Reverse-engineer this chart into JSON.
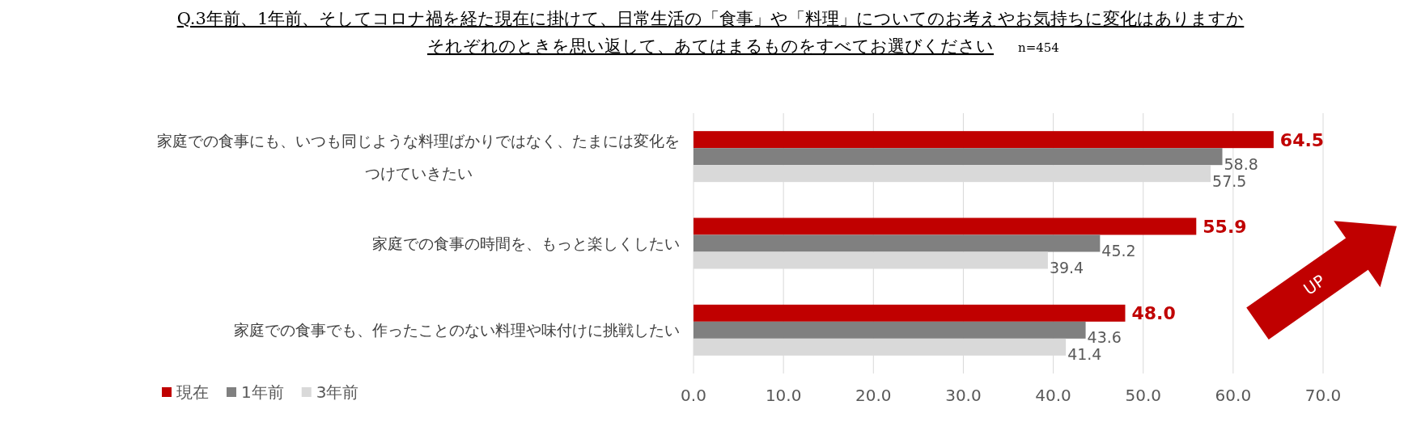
{
  "chart_data": {
    "type": "bar",
    "orientation": "horizontal",
    "title": "Q.3年前、1年前、そしてコロナ禍を経た現在に掛けて、日常生活の「食事」や「料理」についてのお考えやお気持ちに変化はありますか",
    "subtitle": "それぞれのときを思い返して、あてはまるものをすべてお選びください",
    "annotations": [
      "n=454",
      "UP"
    ],
    "categories": [
      "家庭での食事にも、いつも同じような料理ばかりではなく、たまには変化をつけていきたい",
      "家庭での食事の時間を、もっと楽しくしたい",
      "家庭での食事でも、作ったことのない料理や味付けに挑戦したい"
    ],
    "series": [
      {
        "name": "現在",
        "color": "#c00000",
        "values": [
          64.5,
          55.9,
          48.0
        ],
        "value_labels": [
          "64.5",
          "55.9",
          "48.0"
        ]
      },
      {
        "name": "1年前",
        "color": "#808080",
        "values": [
          58.8,
          45.2,
          43.6
        ],
        "value_labels": [
          "58.8",
          "45.2",
          "43.6"
        ]
      },
      {
        "name": "3年前",
        "color": "#d9d9d9",
        "values": [
          57.5,
          39.4,
          41.4
        ],
        "value_labels": [
          "57.5",
          "39.4",
          "41.4"
        ]
      }
    ],
    "xlim": [
      0,
      70
    ],
    "xticks": [
      {
        "value": 0,
        "label": "0.0"
      },
      {
        "value": 10,
        "label": "10.0"
      },
      {
        "value": 20,
        "label": "20.0"
      },
      {
        "value": 30,
        "label": "30.0"
      },
      {
        "value": 40,
        "label": "40.0"
      },
      {
        "value": 50,
        "label": "50.0"
      },
      {
        "value": 60,
        "label": "60.0"
      },
      {
        "value": 70,
        "label": "70.0"
      }
    ],
    "grid": "x",
    "legend": "bottom left"
  }
}
